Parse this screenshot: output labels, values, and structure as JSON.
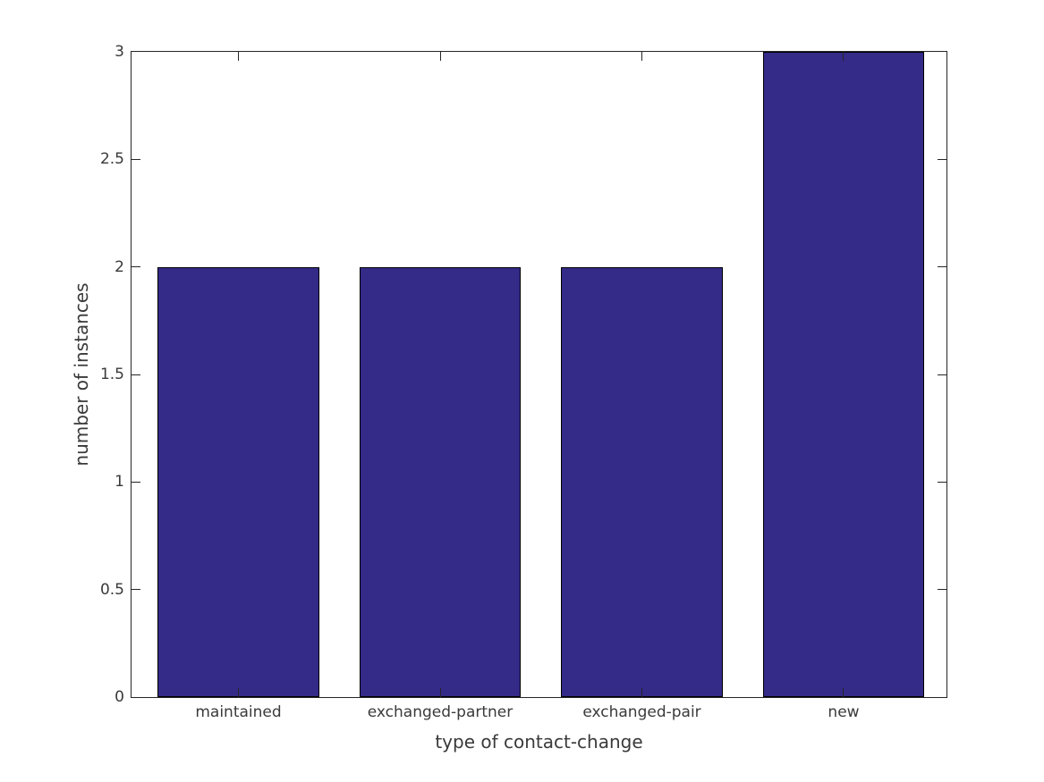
{
  "chart_data": {
    "type": "bar",
    "title": "",
    "xlabel": "type of contact-change",
    "ylabel": "number of instances",
    "categories": [
      "maintained",
      "exchanged-partner",
      "exchanged-pair",
      "new"
    ],
    "values": [
      2,
      2,
      2,
      3
    ],
    "xlim": [
      0.47,
      4.51
    ],
    "ylim": [
      0,
      3
    ],
    "yticks": [
      0,
      0.5,
      1,
      1.5,
      2,
      2.5,
      3
    ],
    "ytick_labels": [
      "0",
      "0.5",
      "1",
      "1.5",
      "2",
      "2.5",
      "3"
    ],
    "bar_width_units": 0.8,
    "grid": false,
    "legend": null,
    "box_on": true,
    "tick_direction": "in",
    "colors": {
      "bar_fill": "#342a87",
      "bar_edge": "#000000",
      "axis": "#262626",
      "text": "#3a3a3a",
      "background": "#ffffff"
    }
  }
}
